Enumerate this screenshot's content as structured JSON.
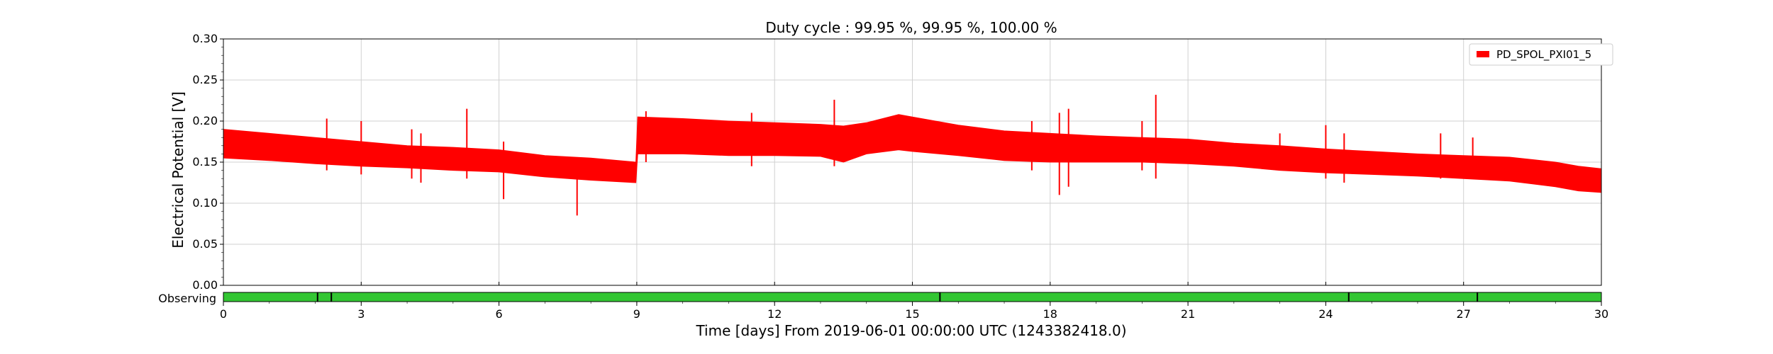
{
  "chart_data": {
    "type": "area",
    "title": "Duty cycle : 99.95 %, 99.95 %, 100.00 %",
    "xlabel": "Time [days] From 2019-06-01 00:00:00 UTC (1243382418.0)",
    "ylabel": "Electrical Potential [V]",
    "xlim": [
      0,
      30
    ],
    "ylim": [
      0,
      0.3
    ],
    "x_ticks": [
      0,
      3,
      6,
      9,
      12,
      15,
      18,
      21,
      24,
      27,
      30
    ],
    "x_tick_labels": [
      "0",
      "3",
      "6",
      "9",
      "12",
      "15",
      "18",
      "21",
      "24",
      "27",
      "30"
    ],
    "y_ticks": [
      0,
      0.05,
      0.1,
      0.15,
      0.2,
      0.25,
      0.3
    ],
    "y_tick_labels": [
      "0.00",
      "0.05",
      "0.10",
      "0.15",
      "0.20",
      "0.25",
      "0.30"
    ],
    "grid": true,
    "legend_position": "top-right",
    "series": [
      {
        "name": "PD_SPOL_PXI01_5",
        "color": "#ff0000",
        "envelope": {
          "x": [
            0,
            1,
            2,
            3,
            4,
            5,
            6,
            7,
            8,
            8.98,
            9.02,
            10,
            11,
            12,
            13,
            13.5,
            14,
            14.7,
            15,
            16,
            17,
            18,
            19,
            20,
            21,
            22,
            23,
            24,
            25,
            26,
            27,
            28,
            29,
            29.5,
            30
          ],
          "upper": [
            0.19,
            0.185,
            0.18,
            0.175,
            0.17,
            0.168,
            0.165,
            0.158,
            0.155,
            0.15,
            0.205,
            0.203,
            0.2,
            0.198,
            0.196,
            0.194,
            0.198,
            0.208,
            0.205,
            0.195,
            0.188,
            0.185,
            0.182,
            0.18,
            0.178,
            0.173,
            0.17,
            0.166,
            0.163,
            0.16,
            0.158,
            0.156,
            0.15,
            0.145,
            0.142
          ],
          "lower": [
            0.155,
            0.152,
            0.148,
            0.145,
            0.143,
            0.14,
            0.138,
            0.132,
            0.128,
            0.125,
            0.16,
            0.16,
            0.158,
            0.158,
            0.157,
            0.15,
            0.16,
            0.165,
            0.163,
            0.158,
            0.152,
            0.15,
            0.15,
            0.15,
            0.148,
            0.145,
            0.14,
            0.137,
            0.135,
            0.133,
            0.13,
            0.127,
            0.12,
            0.115,
            0.113
          ]
        },
        "spikes": [
          {
            "x": 2.25,
            "ymin": 0.14,
            "ymax": 0.203
          },
          {
            "x": 3.0,
            "ymin": 0.135,
            "ymax": 0.2
          },
          {
            "x": 4.1,
            "ymin": 0.13,
            "ymax": 0.19
          },
          {
            "x": 4.3,
            "ymin": 0.125,
            "ymax": 0.185
          },
          {
            "x": 5.3,
            "ymin": 0.13,
            "ymax": 0.215
          },
          {
            "x": 6.1,
            "ymin": 0.105,
            "ymax": 0.175
          },
          {
            "x": 7.7,
            "ymin": 0.085,
            "ymax": 0.15
          },
          {
            "x": 9.2,
            "ymin": 0.15,
            "ymax": 0.212
          },
          {
            "x": 11.5,
            "ymin": 0.145,
            "ymax": 0.21
          },
          {
            "x": 13.3,
            "ymin": 0.145,
            "ymax": 0.226
          },
          {
            "x": 17.6,
            "ymin": 0.14,
            "ymax": 0.2
          },
          {
            "x": 18.2,
            "ymin": 0.11,
            "ymax": 0.21
          },
          {
            "x": 18.4,
            "ymin": 0.12,
            "ymax": 0.215
          },
          {
            "x": 20.0,
            "ymin": 0.14,
            "ymax": 0.2
          },
          {
            "x": 20.3,
            "ymin": 0.13,
            "ymax": 0.232
          },
          {
            "x": 23.0,
            "ymin": 0.14,
            "ymax": 0.185
          },
          {
            "x": 24.0,
            "ymin": 0.13,
            "ymax": 0.195
          },
          {
            "x": 24.4,
            "ymin": 0.125,
            "ymax": 0.185
          },
          {
            "x": 26.5,
            "ymin": 0.13,
            "ymax": 0.185
          },
          {
            "x": 27.2,
            "ymin": 0.13,
            "ymax": 0.18
          }
        ]
      }
    ],
    "state_bar": {
      "label": "Observing",
      "color": "#33c633",
      "gap_color": "#000000",
      "gaps": [
        2.05,
        2.35,
        15.6,
        24.5,
        27.3
      ]
    }
  }
}
